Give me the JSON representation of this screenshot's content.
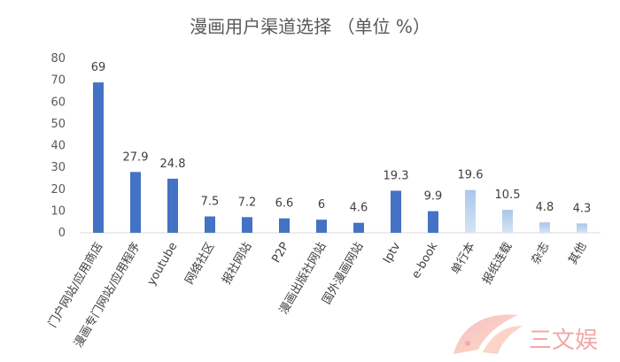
{
  "chart_data": {
    "type": "bar",
    "title": "漫画用户渠道选择 （单位 %）",
    "categories": [
      "门户网站/应用商店",
      "漫画专门网站/应用程序",
      "youtube",
      "网络社区",
      "报社网站",
      "P2P",
      "漫画出版社网站",
      "国外漫画网站",
      "Iptv",
      "e-book",
      "单行本",
      "报纸连载",
      "杂志",
      "其他"
    ],
    "values": [
      69,
      27.9,
      24.8,
      7.5,
      7.2,
      6.6,
      6,
      4.6,
      19.3,
      9.9,
      19.6,
      10.5,
      4.8,
      4.3
    ],
    "data_labels": [
      "69",
      "27.9",
      "24.8",
      "7.5",
      "7.2",
      "6.6",
      "6",
      "4.6",
      "19.3",
      "9.9",
      "19.6",
      "10.5",
      "4.8",
      "4.3"
    ],
    "bar_styles": [
      "solid",
      "solid",
      "solid",
      "solid",
      "solid",
      "solid",
      "solid",
      "solid",
      "solid",
      "solid",
      "gradient",
      "gradient",
      "gradient",
      "gradient"
    ],
    "colors": {
      "solid": "#4472c4",
      "gradient_top": "#a9c6ea",
      "gradient_bottom": "#d6e4f5",
      "axis": "#d9d9d9",
      "text": "#595959"
    },
    "yticks": [
      "0",
      "10",
      "20",
      "30",
      "40",
      "50",
      "60",
      "70",
      "80"
    ],
    "ylim": [
      0,
      80
    ],
    "grid": false,
    "legend": "none"
  },
  "watermark": {
    "text": "三文娱"
  }
}
